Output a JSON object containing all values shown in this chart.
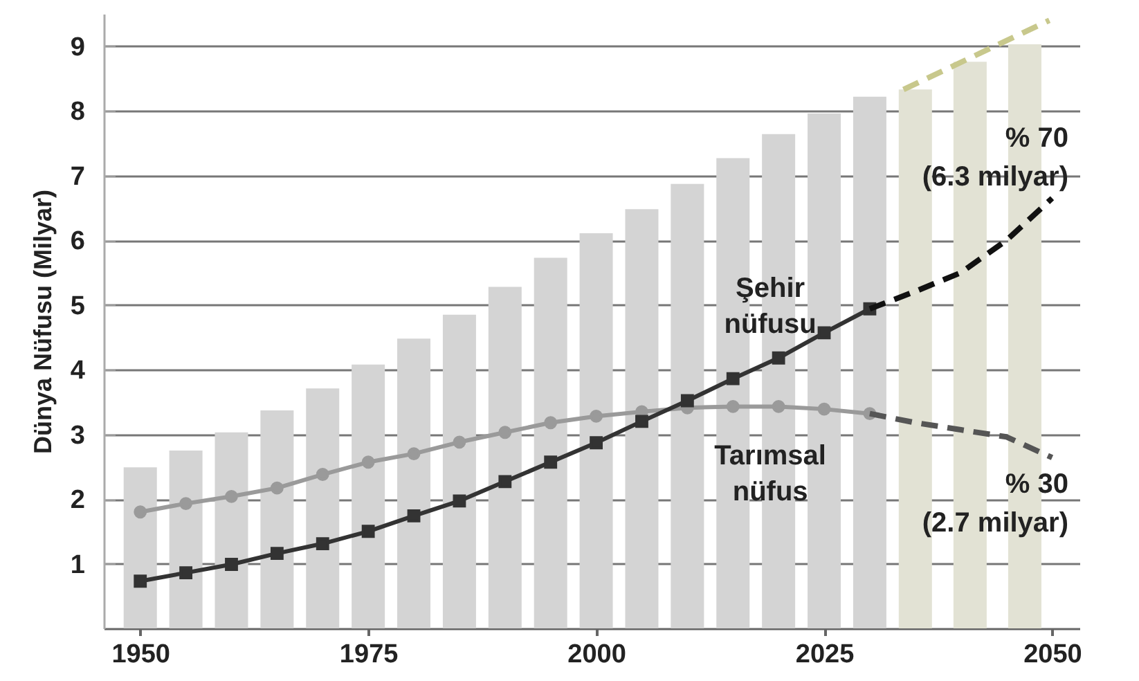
{
  "chart_data": {
    "type": "bar",
    "ylabel": "Dünya Nüfusu (Milyar)",
    "xlim": [
      1946,
      2053
    ],
    "xticks": [
      1950,
      1975,
      2000,
      2025,
      2050
    ],
    "ylim": [
      0,
      9.5
    ],
    "yticks": [
      1,
      2,
      3,
      4,
      5,
      6,
      7,
      8,
      9
    ],
    "grid": "y",
    "series": [
      {
        "x": [
          1950,
          1955,
          1960,
          1965,
          1970,
          1975,
          1980,
          1985,
          1990,
          1995,
          2000,
          2005,
          2010,
          2015,
          2020,
          2025,
          2030,
          2035,
          2041,
          2047
        ],
        "values": [
          2.49,
          2.75,
          3.03,
          3.37,
          3.71,
          4.08,
          4.48,
          4.85,
          5.28,
          5.73,
          6.11,
          6.48,
          6.87,
          7.27,
          7.64,
          7.96,
          8.22,
          8.33,
          8.76,
          9.03
        ],
        "colors": [
          "#d4d4d4",
          "#d4d4d4",
          "#d4d4d4",
          "#d4d4d4",
          "#d4d4d4",
          "#d4d4d4",
          "#d4d4d4",
          "#d4d4d4",
          "#d4d4d4",
          "#d4d4d4",
          "#d4d4d4",
          "#d4d4d4",
          "#d4d4d4",
          "#d4d4d4",
          "#d4d4d4",
          "#d4d4d4",
          "#d4d4d4",
          "#e2e2d4",
          "#e2e2d4",
          "#e2e2d4"
        ]
      },
      {
        "type": "line",
        "color": "#c8c88c",
        "line_style": "dashed",
        "marker": "none",
        "x": [
          2033.7,
          2049.7
        ],
        "values": [
          8.33,
          9.4
        ]
      },
      {
        "type": "line",
        "name": "Tarımsal nüfus",
        "color": "#9a9a9a",
        "line_style": "solid",
        "marker": "circle",
        "x": [
          1950,
          1955,
          1960,
          1965,
          1970,
          1975,
          1980,
          1985,
          1990,
          1995,
          2000,
          2005,
          2010,
          2015,
          2020,
          2025,
          2030
        ],
        "values": [
          1.8,
          1.93,
          2.04,
          2.17,
          2.38,
          2.57,
          2.7,
          2.88,
          3.03,
          3.18,
          3.28,
          3.35,
          3.41,
          3.43,
          3.43,
          3.39,
          3.32
        ]
      },
      {
        "type": "line",
        "color": "#555555",
        "line_style": "dashed",
        "marker": "none",
        "x": [
          2030,
          2035,
          2040,
          2045,
          2050
        ],
        "values": [
          3.32,
          3.18,
          3.07,
          2.96,
          2.64
        ]
      },
      {
        "type": "line",
        "name": "Şehir nüfusu",
        "color": "#333333",
        "line_style": "solid",
        "marker": "square",
        "x": [
          1950,
          1955,
          1960,
          1965,
          1970,
          1975,
          1980,
          1985,
          1990,
          1995,
          2000,
          2005,
          2010,
          2015,
          2020,
          2025,
          2030
        ],
        "values": [
          0.73,
          0.86,
          0.99,
          1.16,
          1.31,
          1.5,
          1.74,
          1.97,
          2.27,
          2.57,
          2.87,
          3.2,
          3.52,
          3.86,
          4.18,
          4.57,
          4.94
        ]
      },
      {
        "type": "line",
        "color": "#111111",
        "line_style": "dashed",
        "marker": "none",
        "x": [
          2030,
          2035,
          2040,
          2045,
          2050
        ],
        "values": [
          4.94,
          5.21,
          5.5,
          6.0,
          6.65
        ]
      }
    ],
    "annotations": [
      "% 70 (6.3 milyar)",
      "% 30 (2.7 milyar)"
    ]
  }
}
